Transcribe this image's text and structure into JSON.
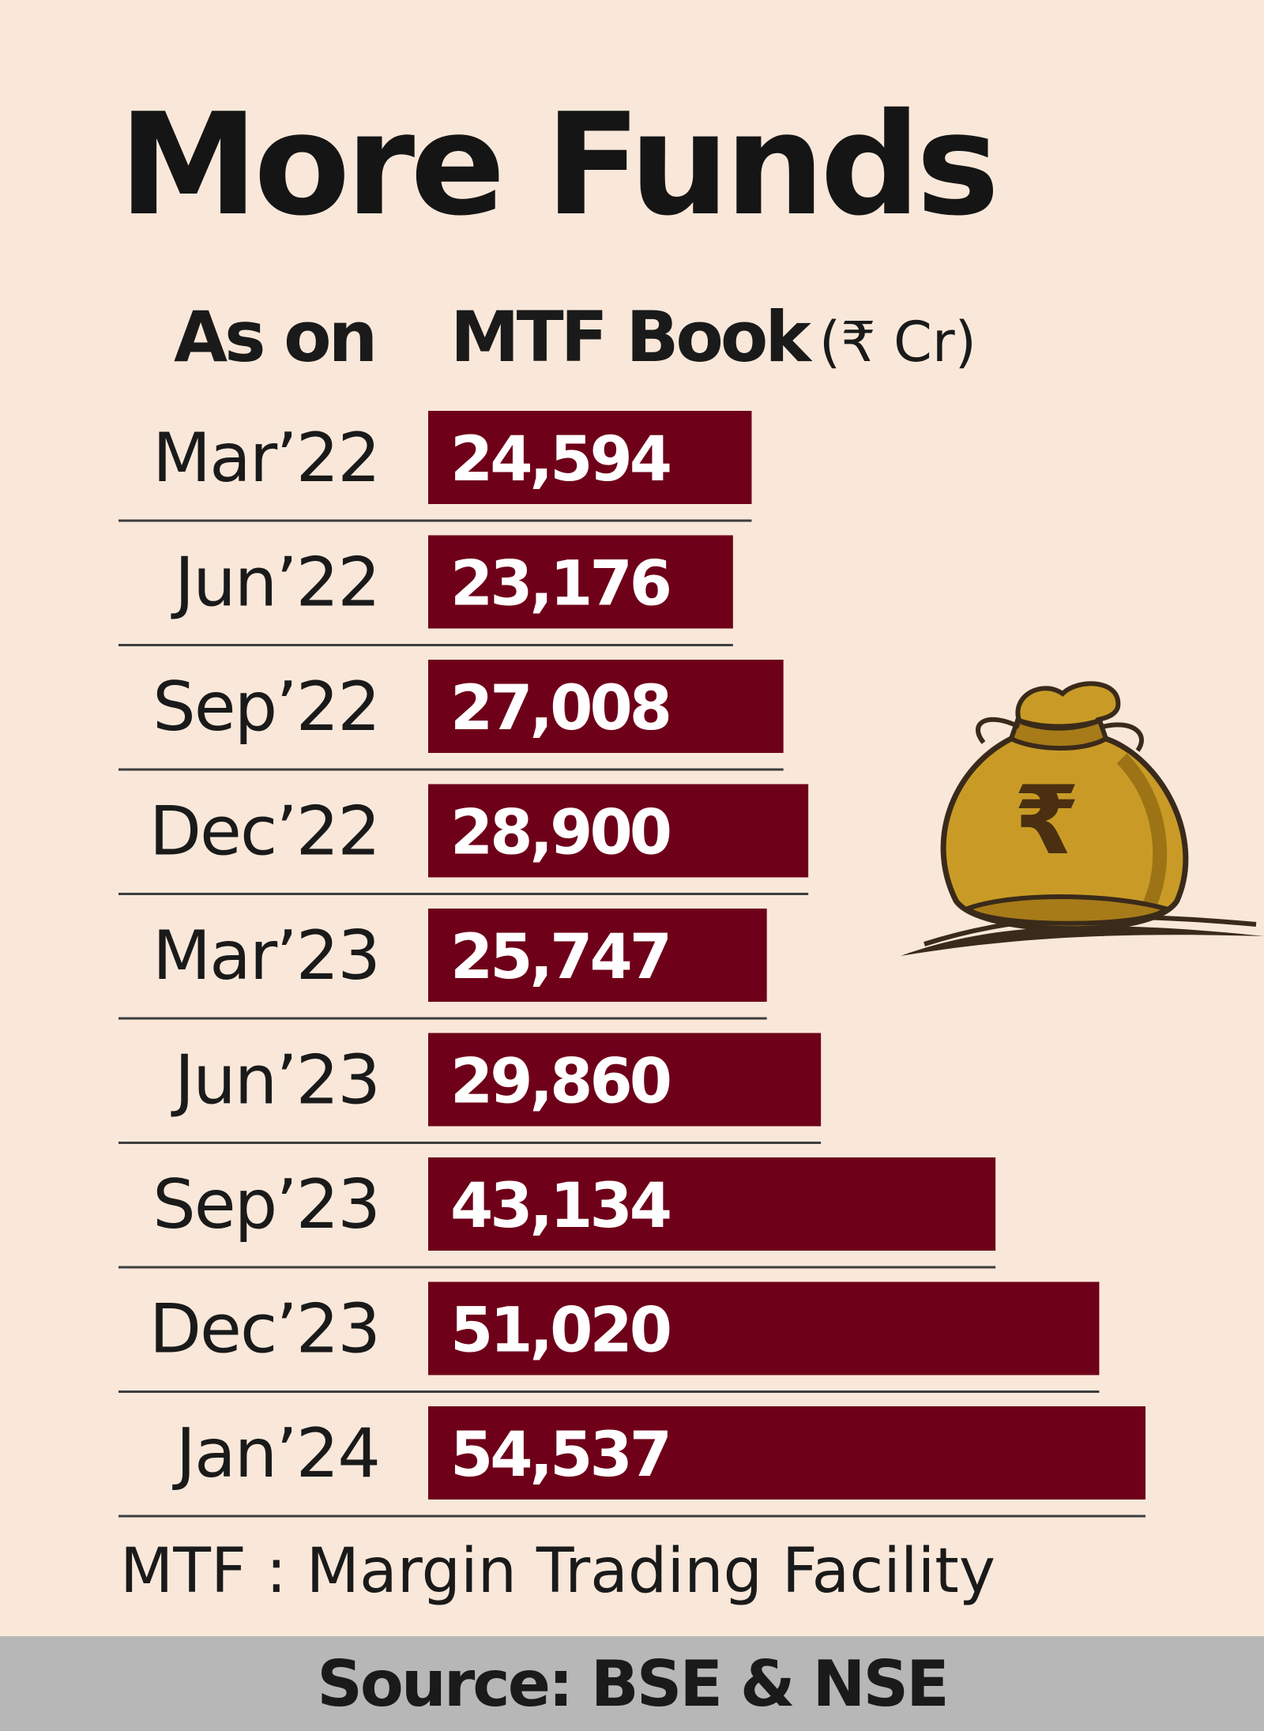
{
  "chart_data": {
    "type": "bar",
    "orientation": "horizontal",
    "title": "More Funds",
    "header_category": "As on",
    "header_value": "MTF Book",
    "header_unit": "(₹ Cr)",
    "categories": [
      "Mar’22",
      "Jun’22",
      "Sep’22",
      "Dec’22",
      "Mar’23",
      "Jun’23",
      "Sep’23",
      "Dec’23",
      "Jan’24"
    ],
    "values": [
      24594,
      23176,
      27008,
      28900,
      25747,
      29860,
      43134,
      51020,
      54537
    ],
    "value_labels": [
      "24,594",
      "23,176",
      "27,008",
      "28,900",
      "25,747",
      "29,860",
      "43,134",
      "51,020",
      "54,537"
    ],
    "footnote": "MTF : Margin Trading Facility",
    "source": "Source: BSE & NSE",
    "bar_color": "#6f0019"
  },
  "illustration": {
    "icon": "rupee-money-bag-icon",
    "symbol": "₹"
  }
}
